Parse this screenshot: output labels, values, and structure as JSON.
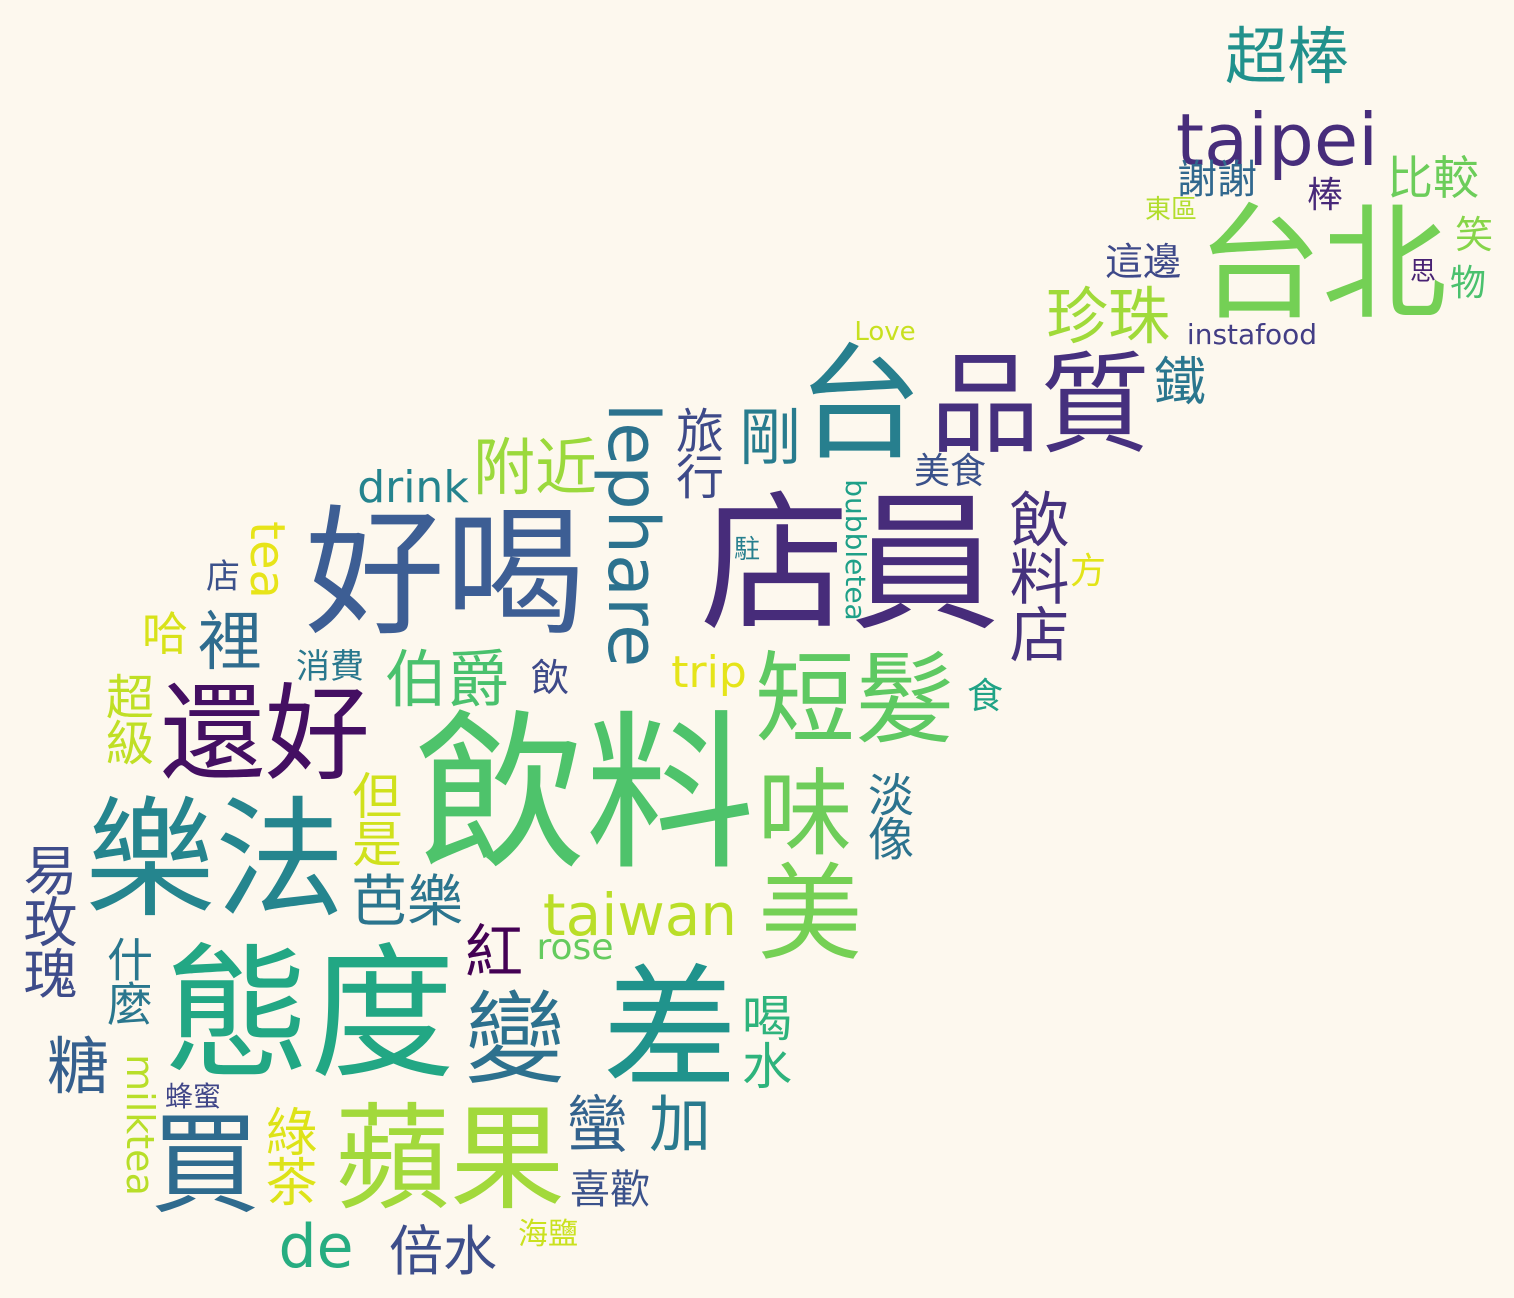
{
  "words": [
    {
      "id": "w01",
      "text": "飲料",
      "color": "#4ec36b"
    },
    {
      "id": "w02",
      "text": "店員",
      "color": "#472c7a"
    },
    {
      "id": "w03",
      "text": "好喝",
      "color": "#3d5e94"
    },
    {
      "id": "w04",
      "text": "態度",
      "color": "#22a784"
    },
    {
      "id": "w05",
      "text": "樂法",
      "color": "#25858e"
    },
    {
      "id": "w06",
      "text": "台北",
      "color": "#74d055"
    },
    {
      "id": "w07",
      "text": "台",
      "color": "#277f8e"
    },
    {
      "id": "w08",
      "text": "品質",
      "color": "#46307e"
    },
    {
      "id": "w09",
      "text": "蘋果",
      "color": "#a2d93b"
    },
    {
      "id": "w10",
      "text": "差",
      "color": "#20938c"
    },
    {
      "id": "w11",
      "text": "還好",
      "color": "#440f62"
    },
    {
      "id": "w12",
      "text": "買",
      "color": "#2f6b8e"
    },
    {
      "id": "w13",
      "text": "變",
      "color": "#2d718e"
    },
    {
      "id": "w14",
      "text": "美",
      "color": "#75d054"
    },
    {
      "id": "w15",
      "text": "短髮",
      "color": "#5ec962"
    },
    {
      "id": "w16",
      "text": "味",
      "color": "#6ecd5a"
    },
    {
      "id": "w17",
      "text": "taipei",
      "color": "#472d7b"
    },
    {
      "id": "w18",
      "text": "lephare",
      "color": "#2c728e"
    },
    {
      "id": "w19",
      "text": "taiwan",
      "color": "#bade28"
    },
    {
      "id": "w20",
      "text": "超棒",
      "color": "#21918c"
    },
    {
      "id": "w21",
      "text": "珍珠",
      "color": "#a0da39"
    },
    {
      "id": "w22",
      "text": "附近",
      "color": "#9bd93c"
    },
    {
      "id": "w23",
      "text": "伯爵",
      "color": "#4ac16d"
    },
    {
      "id": "w24",
      "text": "飲料店",
      "color": "#46327e"
    },
    {
      "id": "w25",
      "text": "剛",
      "color": "#287c8e"
    },
    {
      "id": "w26",
      "text": "旅行",
      "color": "#3e4a89"
    },
    {
      "id": "w27",
      "text": "比較",
      "color": "#6ccd5a"
    },
    {
      "id": "w28",
      "text": "鐵",
      "color": "#2a768e"
    },
    {
      "id": "w29",
      "text": "謝謝",
      "color": "#31688e"
    },
    {
      "id": "w30",
      "text": "這邊",
      "color": "#3e4989"
    },
    {
      "id": "w31",
      "text": "instafood",
      "color": "#433e85"
    },
    {
      "id": "w32",
      "text": "Love",
      "color": "#c8e020"
    },
    {
      "id": "w33",
      "text": "drink",
      "color": "#25848e"
    },
    {
      "id": "w34",
      "text": "美食",
      "color": "#3b528b"
    },
    {
      "id": "w35",
      "text": "bubbletea",
      "color": "#1fa088"
    },
    {
      "id": "w36",
      "text": "淡像",
      "color": "#2c738e"
    },
    {
      "id": "w37",
      "text": "喝水",
      "color": "#2eb37c"
    },
    {
      "id": "w38",
      "text": "紅",
      "color": "#440154"
    },
    {
      "id": "w39",
      "text": "rose",
      "color": "#65cb5e"
    },
    {
      "id": "w40",
      "text": "芭樂",
      "color": "#2b758e"
    },
    {
      "id": "w41",
      "text": "但是",
      "color": "#d0e11c"
    },
    {
      "id": "w42",
      "text": "加",
      "color": "#297a8e"
    },
    {
      "id": "w43",
      "text": "蠻",
      "color": "#33638d"
    },
    {
      "id": "w44",
      "text": "喜歡",
      "color": "#3b528b"
    },
    {
      "id": "w45",
      "text": "海鹽",
      "color": "#cae11f"
    },
    {
      "id": "w46",
      "text": "倍水",
      "color": "#3d4e8a"
    },
    {
      "id": "w47",
      "text": "de",
      "color": "#27ad81"
    },
    {
      "id": "w48",
      "text": "綠茶",
      "color": "#dde318"
    },
    {
      "id": "w49",
      "text": "蜂蜜",
      "color": "#404688"
    },
    {
      "id": "w50",
      "text": "milktea",
      "color": "#b8de29"
    },
    {
      "id": "w51",
      "text": "糖",
      "color": "#355f8d"
    },
    {
      "id": "w52",
      "text": "什麼",
      "color": "#2a778e"
    },
    {
      "id": "w53",
      "text": "易玫瑰",
      "color": "#3e4c8a"
    },
    {
      "id": "w54",
      "text": "超級",
      "color": "#c0df25"
    },
    {
      "id": "w55",
      "text": "哈",
      "color": "#d8e219"
    },
    {
      "id": "w56",
      "text": "裡",
      "color": "#2f6c8e"
    },
    {
      "id": "w57",
      "text": "消費",
      "color": "#2a788e"
    },
    {
      "id": "w58",
      "text": "tea",
      "color": "#e7e419"
    },
    {
      "id": "w59",
      "text": "店",
      "color": "#3b518b"
    },
    {
      "id": "w60",
      "text": "trip",
      "color": "#e5e419"
    },
    {
      "id": "w61",
      "text": "飲",
      "color": "#3e4a89"
    },
    {
      "id": "w62",
      "text": "駐",
      "color": "#277f8e"
    },
    {
      "id": "w63",
      "text": "方",
      "color": "#e2e418"
    },
    {
      "id": "w64",
      "text": "食",
      "color": "#20a386"
    },
    {
      "id": "w65",
      "text": "棒",
      "color": "#482979"
    },
    {
      "id": "w66",
      "text": "東區",
      "color": "#b2dd2d"
    },
    {
      "id": "w67",
      "text": "笑",
      "color": "#86d549"
    },
    {
      "id": "w68",
      "text": "思",
      "color": "#482173"
    },
    {
      "id": "w69",
      "text": "物",
      "color": "#4ac16d"
    }
  ]
}
